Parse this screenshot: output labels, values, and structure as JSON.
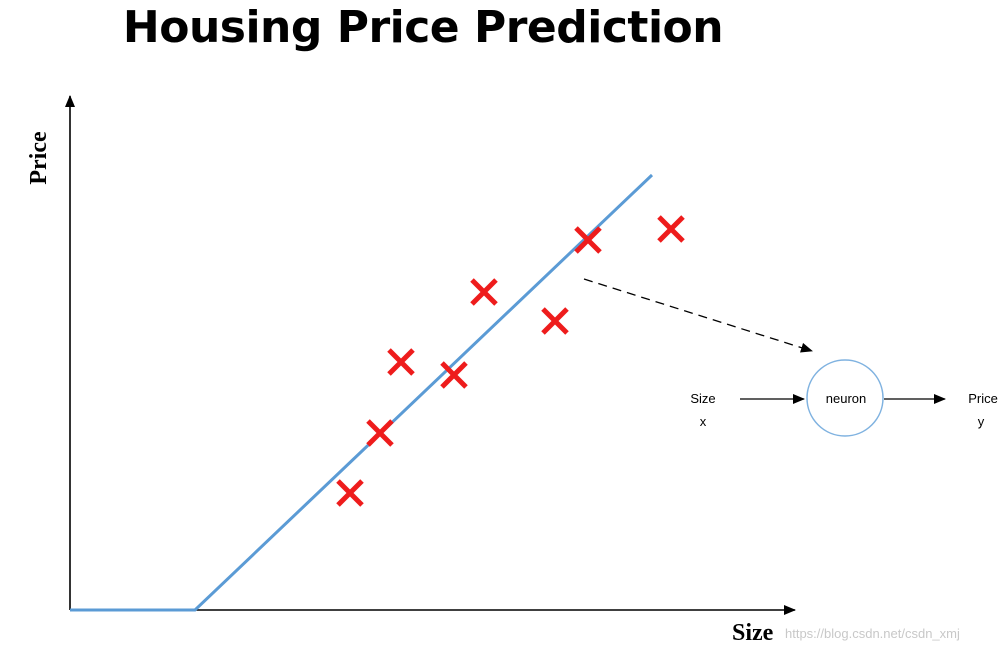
{
  "title": "Housing Price Prediction",
  "axes": {
    "x_label": "Size",
    "y_label": "Price"
  },
  "neuron_diagram": {
    "input_label": "Size",
    "input_var": "x",
    "node_label": "neuron",
    "output_label": "Price",
    "output_var": "y"
  },
  "watermark": "https://blog.csdn.net/csdn_xmj",
  "colors": {
    "marker": "#ee1c1c",
    "fit_line": "#5b9bd5",
    "neuron_stroke": "#7fb2e0"
  },
  "chart_data": {
    "type": "scatter",
    "xlabel": "Size",
    "ylabel": "Price",
    "points": [
      {
        "x": 350,
        "y": 117
      },
      {
        "x": 380,
        "y": 177
      },
      {
        "x": 401,
        "y": 248
      },
      {
        "x": 454,
        "y": 235
      },
      {
        "x": 484,
        "y": 318
      },
      {
        "x": 555,
        "y": 289
      },
      {
        "x": 588,
        "y": 370
      },
      {
        "x": 671,
        "y": 381
      }
    ],
    "fit_line": [
      {
        "x": 70,
        "y": 0
      },
      {
        "x": 195,
        "y": 0
      },
      {
        "x": 652,
        "y": 435
      }
    ],
    "xlim": [
      70,
      790
    ],
    "ylim": [
      0,
      515
    ]
  }
}
